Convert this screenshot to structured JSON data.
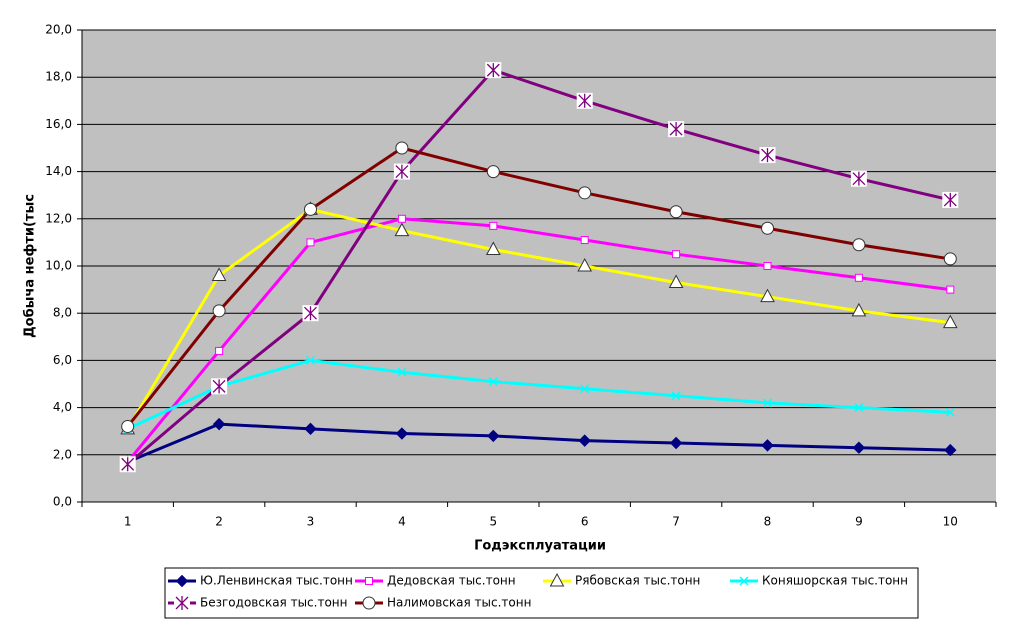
{
  "chart_data": {
    "type": "line",
    "x_label": "Годэксплуатации",
    "y_label": "Добыча нефти(тыс",
    "categories": [
      "1",
      "2",
      "3",
      "4",
      "5",
      "6",
      "7",
      "8",
      "9",
      "10"
    ],
    "ylim": [
      0,
      20
    ],
    "yticks": [
      {
        "value": 0,
        "label": "0,0"
      },
      {
        "value": 2,
        "label": "2,0"
      },
      {
        "value": 4,
        "label": "4,0"
      },
      {
        "value": 6,
        "label": "6,0"
      },
      {
        "value": 8,
        "label": "8,0"
      },
      {
        "value": 10,
        "label": "10,0"
      },
      {
        "value": 12,
        "label": "12,0"
      },
      {
        "value": 14,
        "label": "14,0"
      },
      {
        "value": 16,
        "label": "16,0"
      },
      {
        "value": 18,
        "label": "18,0"
      },
      {
        "value": 20,
        "label": "20,0"
      }
    ],
    "grid": true,
    "legend": "bottom",
    "series": [
      {
        "name": "Ю.Ленвинская тыс.тонн",
        "color": "#000080",
        "marker": "diamond",
        "values": [
          1.7,
          3.3,
          3.1,
          2.9,
          2.8,
          2.6,
          2.5,
          2.4,
          2.3,
          2.2
        ]
      },
      {
        "name": "Дедовская тыс.тонн",
        "color": "#FF00FF",
        "marker": "square",
        "values": [
          1.7,
          6.4,
          11.0,
          12.0,
          11.7,
          11.1,
          10.5,
          10.0,
          9.5,
          9.0
        ]
      },
      {
        "name": "Рябовская тыс.тонн",
        "color": "#FFFF00",
        "marker": "triangle",
        "values": [
          3.1,
          9.6,
          12.4,
          11.5,
          10.7,
          10.0,
          9.3,
          8.7,
          8.1,
          7.6
        ]
      },
      {
        "name": "Коняшорская тыс.тонн",
        "color": "#00FFFF",
        "marker": "cross",
        "values": [
          3.1,
          4.9,
          6.0,
          5.5,
          5.1,
          4.8,
          4.5,
          4.2,
          4.0,
          3.8
        ]
      },
      {
        "name": "Безгодовская тыс.тонн",
        "color": "#800080",
        "marker": "star",
        "values": [
          1.6,
          4.9,
          8.0,
          14.0,
          18.3,
          17.0,
          15.8,
          14.7,
          13.7,
          12.8
        ]
      },
      {
        "name": "Налимовская тыс.тонн",
        "color": "#800000",
        "marker": "circle",
        "values": [
          3.2,
          8.1,
          12.4,
          15.0,
          14.0,
          13.1,
          12.3,
          11.6,
          10.9,
          10.3
        ]
      }
    ]
  }
}
